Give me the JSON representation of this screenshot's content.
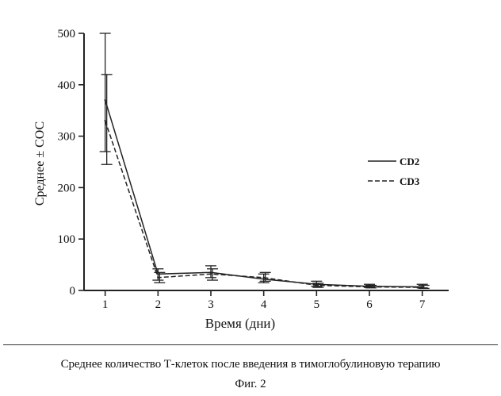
{
  "chart_data": {
    "type": "line",
    "title": "",
    "xlabel": "Время (дни)",
    "ylabel": "Среднее ± СОС",
    "x": [
      1,
      2,
      3,
      4,
      5,
      6,
      7
    ],
    "xlim": [
      0.6,
      7.5
    ],
    "ylim": [
      0,
      500
    ],
    "xticks": [
      "1",
      "2",
      "3",
      "4",
      "5",
      "6",
      "7"
    ],
    "yticks": [
      "0",
      "100",
      "200",
      "300",
      "400",
      "500"
    ],
    "grid": false,
    "legend_position": "right",
    "series": [
      {
        "name": "CD2",
        "style": "solid",
        "values": [
          370,
          32,
          35,
          22,
          12,
          8,
          7
        ],
        "error_low": [
          270,
          20,
          25,
          15,
          8,
          6,
          5
        ],
        "error_high": [
          500,
          42,
          48,
          32,
          18,
          12,
          12
        ]
      },
      {
        "name": "CD3",
        "style": "dashed",
        "values": [
          330,
          25,
          32,
          25,
          10,
          7,
          6
        ],
        "error_low": [
          245,
          15,
          20,
          18,
          6,
          5,
          4
        ],
        "error_high": [
          420,
          35,
          42,
          35,
          14,
          10,
          10
        ]
      }
    ]
  },
  "caption": "Среднее количество Т-клеток после введения в тимоглобулиновую терапию",
  "figure_label": "Фиг. 2",
  "colors": {
    "line": "#222222",
    "background": "#ffffff"
  }
}
